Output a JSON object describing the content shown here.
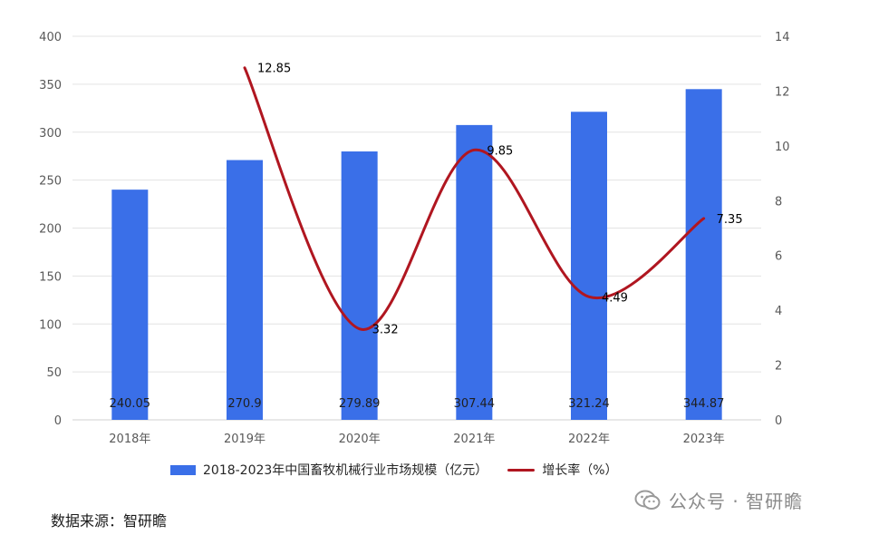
{
  "chart_data": {
    "type": "bar",
    "categories": [
      "2018年",
      "2019年",
      "2020年",
      "2021年",
      "2022年",
      "2023年"
    ],
    "series": [
      {
        "name": "2018-2023年中国畜牧机械行业市场规模（亿元）",
        "type": "bar",
        "axis": "left",
        "values": [
          240.05,
          270.9,
          279.89,
          307.44,
          321.24,
          344.87
        ],
        "labels": [
          "240.05",
          "270.9",
          "279.89",
          "307.44",
          "321.24",
          "344.87"
        ],
        "color": "#3a6fe8"
      },
      {
        "name": "增长率（%）",
        "type": "line",
        "axis": "right",
        "values": [
          null,
          12.85,
          3.32,
          9.85,
          4.49,
          7.35
        ],
        "labels": [
          "",
          "12.85",
          "3.32",
          "9.85",
          "4.49",
          "7.35"
        ],
        "color": "#b01620"
      }
    ],
    "ylim": [
      0,
      400
    ],
    "y_ticks": [
      "0",
      "50",
      "100",
      "150",
      "200",
      "250",
      "300",
      "350",
      "400"
    ],
    "y2lim": [
      0,
      14
    ],
    "y2_ticks": [
      "0",
      "2",
      "4",
      "6",
      "8",
      "10",
      "12",
      "14"
    ],
    "grid": true,
    "legend_position": "bottom"
  },
  "source": "数据来源：智研瞻",
  "watermark": "公众号 · 智研瞻"
}
